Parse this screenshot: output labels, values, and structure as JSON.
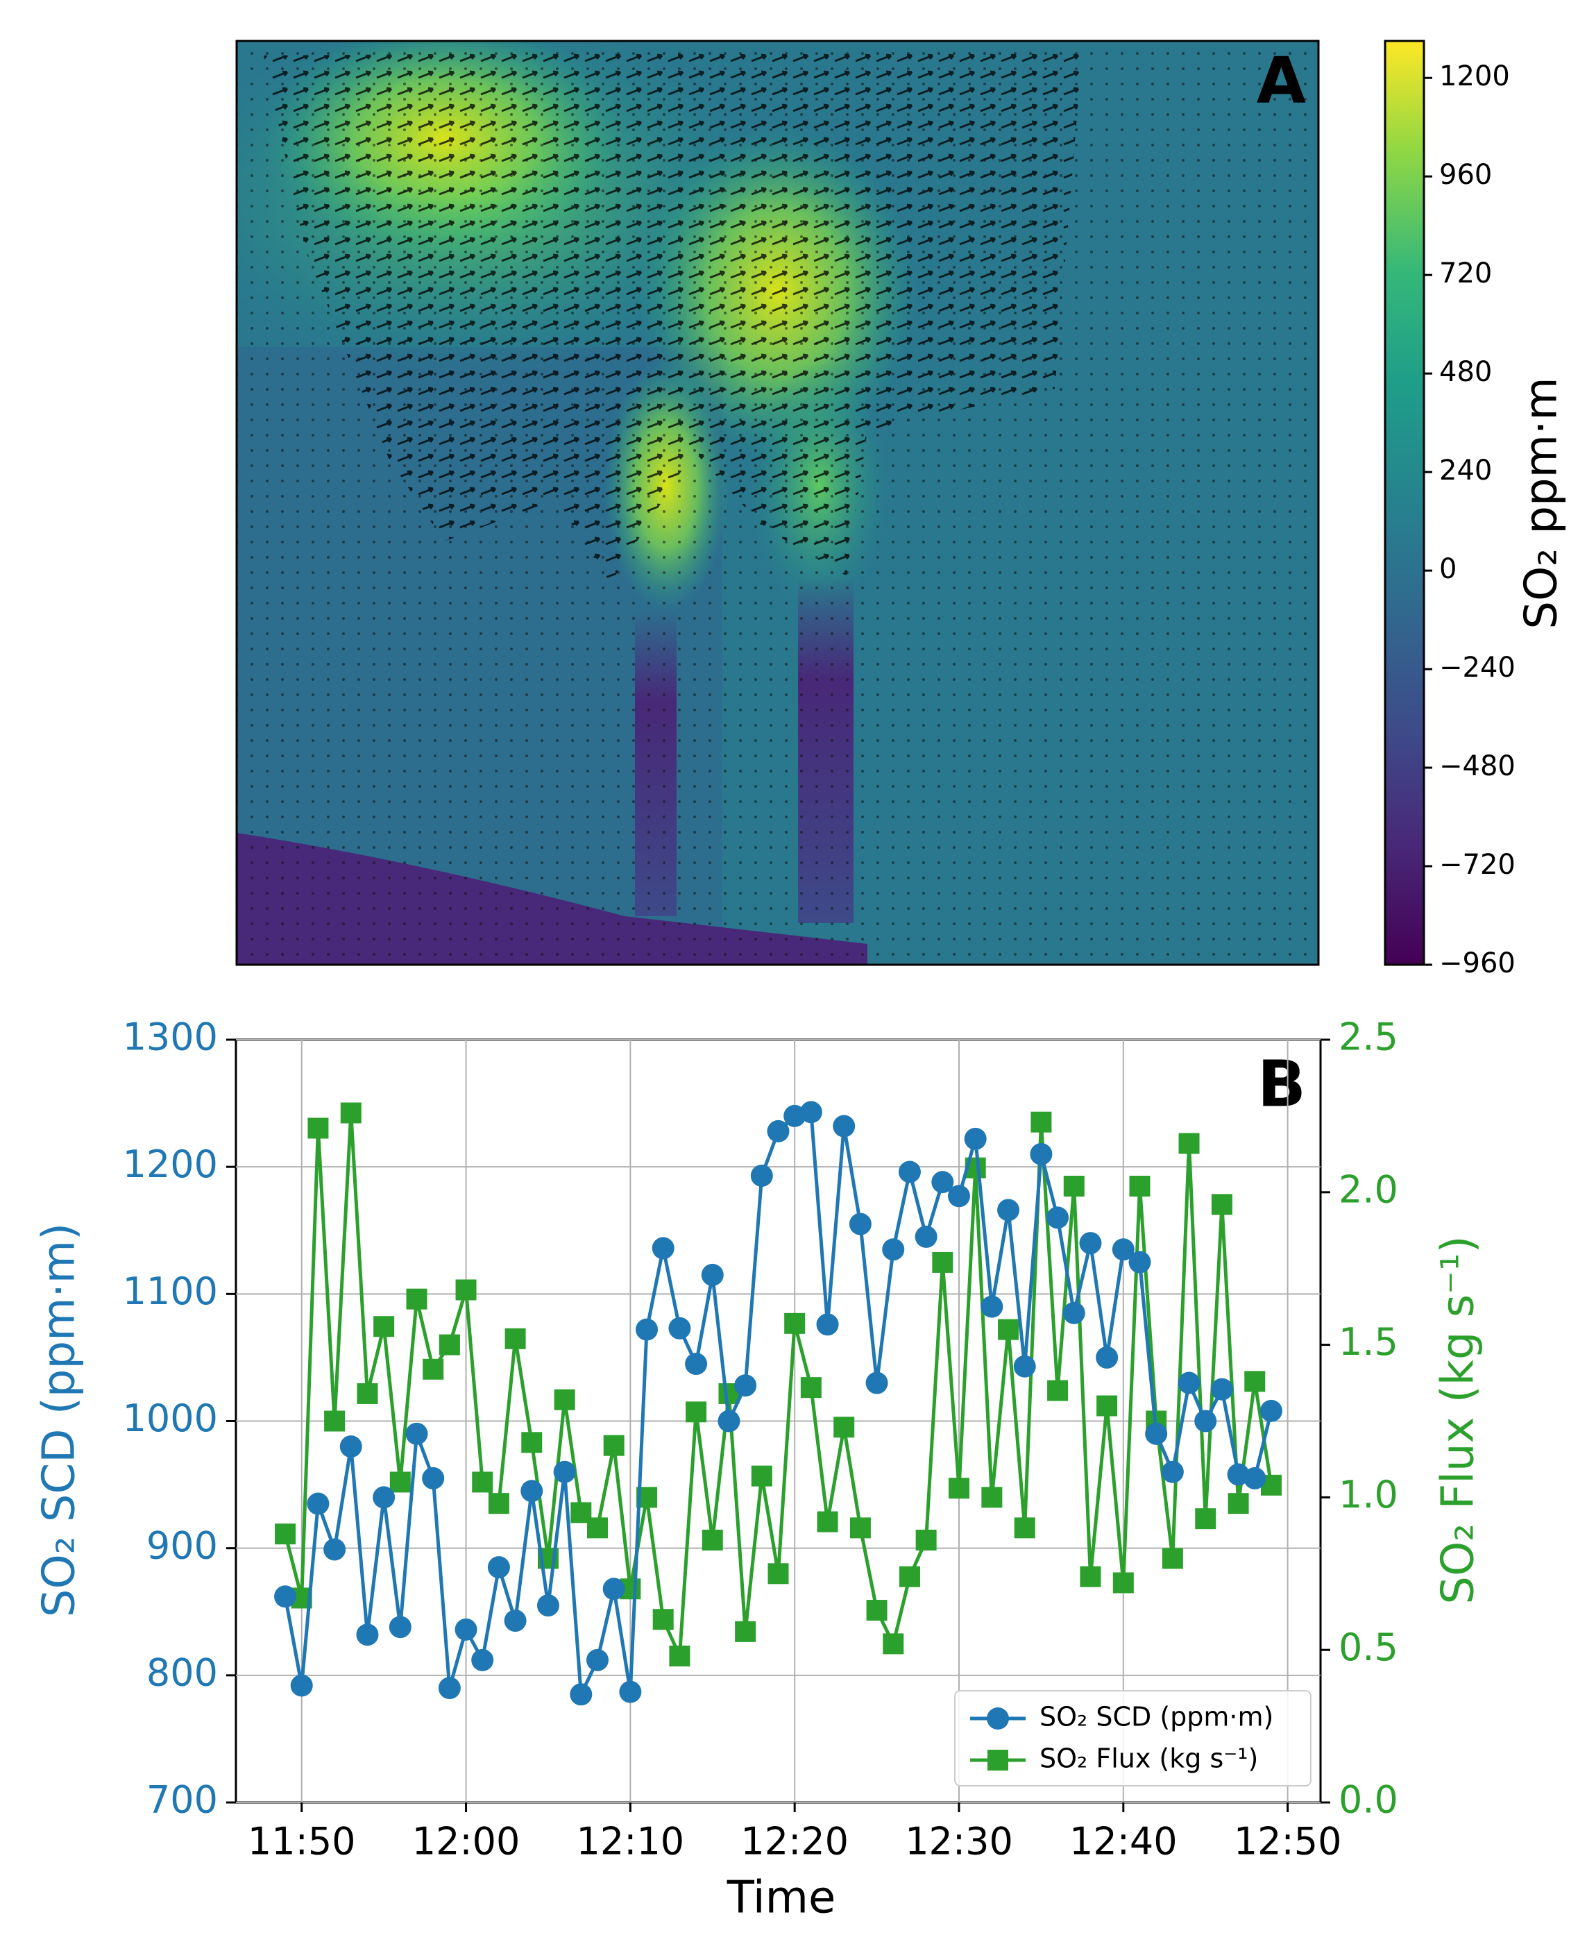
{
  "chart_data": [
    {
      "type": "heatmap",
      "panel_label": "A",
      "colorbar_label": "SO₂ ppm·m",
      "clim": [
        -960,
        1290
      ],
      "colorbar_ticks": [
        {
          "value": -960,
          "label": "−960"
        },
        {
          "value": -720,
          "label": "−720"
        },
        {
          "value": -480,
          "label": "−480"
        },
        {
          "value": -240,
          "label": "−240"
        },
        0,
        240,
        480,
        720,
        960,
        1200
      ]
    },
    {
      "type": "line",
      "panel_label": "B",
      "xlabel": "Time",
      "ylabel": "SO₂ SCD (ppm·m)",
      "y2label": "SO₂ Flux (kg s⁻¹)",
      "x": [
        "11:49",
        "11:50",
        "11:51",
        "11:52",
        "11:53",
        "11:54",
        "11:55",
        "11:56",
        "11:57",
        "11:58",
        "11:59",
        "12:00",
        "12:01",
        "12:02",
        "12:03",
        "12:04",
        "12:05",
        "12:06",
        "12:07",
        "12:08",
        "12:09",
        "12:10",
        "12:11",
        "12:12",
        "12:13",
        "12:14",
        "12:15",
        "12:16",
        "12:17",
        "12:18",
        "12:19",
        "12:20",
        "12:21",
        "12:22",
        "12:23",
        "12:24",
        "12:25",
        "12:26",
        "12:27",
        "12:28",
        "12:29",
        "12:30",
        "12:31",
        "12:32",
        "12:33",
        "12:34",
        "12:35",
        "12:36",
        "12:37",
        "12:38",
        "12:39",
        "12:40",
        "12:41",
        "12:42",
        "12:43",
        "12:44",
        "12:45",
        "12:46",
        "12:47",
        "12:48",
        "12:49"
      ],
      "xlim": [
        "11:46",
        "12:52"
      ],
      "xticks": [
        "11:50",
        "12:00",
        "12:10",
        "12:20",
        "12:30",
        "12:40",
        "12:50"
      ],
      "ylim": [
        700,
        1300
      ],
      "yticks": [
        700,
        800,
        900,
        1000,
        1100,
        1200,
        1300
      ],
      "y2lim": [
        0,
        2.5
      ],
      "y2ticks": [
        {
          "value": 0,
          "label": "0.0"
        },
        0.5,
        {
          "value": 1,
          "label": "1.0"
        },
        1.5,
        {
          "value": 2,
          "label": "2.0"
        },
        2.5
      ],
      "grid": true,
      "legend": "lower right",
      "series": [
        {
          "name": "SO₂ SCD (ppm·m)",
          "color": "#1f77b4",
          "marker": "circle",
          "values": [
            862,
            792,
            935,
            899,
            980,
            832,
            940,
            838,
            990,
            955,
            790,
            836,
            812,
            885,
            843,
            945,
            855,
            960,
            785,
            812,
            868,
            787,
            1072,
            1136,
            1073,
            1045,
            1115,
            1000,
            1028,
            1193,
            1228,
            1240,
            1243,
            1076,
            1232,
            1155,
            1030,
            1135,
            1196,
            1145,
            1188,
            1177,
            1222,
            1090,
            1166,
            1043,
            1210,
            1160,
            1085,
            1140,
            1050,
            1135,
            1125,
            990,
            960,
            1030,
            1000,
            1025,
            958,
            955,
            1008
          ]
        },
        {
          "name": "SO₂ Flux (kg s⁻¹)",
          "color": "#2ca02c",
          "marker": "square",
          "axis": "y2",
          "values": [
            0.88,
            0.67,
            2.21,
            1.25,
            2.26,
            1.34,
            1.56,
            1.05,
            1.65,
            1.42,
            1.5,
            1.68,
            1.05,
            0.98,
            1.52,
            1.18,
            0.8,
            1.32,
            0.95,
            0.9,
            1.17,
            0.7,
            1.0,
            0.6,
            0.48,
            1.28,
            0.86,
            1.34,
            0.56,
            1.07,
            0.75,
            1.57,
            1.36,
            0.92,
            1.23,
            0.9,
            0.63,
            0.52,
            0.74,
            0.86,
            1.77,
            1.03,
            2.08,
            1.0,
            1.55,
            0.9,
            2.23,
            1.35,
            2.02,
            0.74,
            1.3,
            0.72,
            2.02,
            1.25,
            0.8,
            2.16,
            0.93,
            1.96,
            0.98,
            1.38,
            1.04
          ]
        }
      ]
    }
  ]
}
